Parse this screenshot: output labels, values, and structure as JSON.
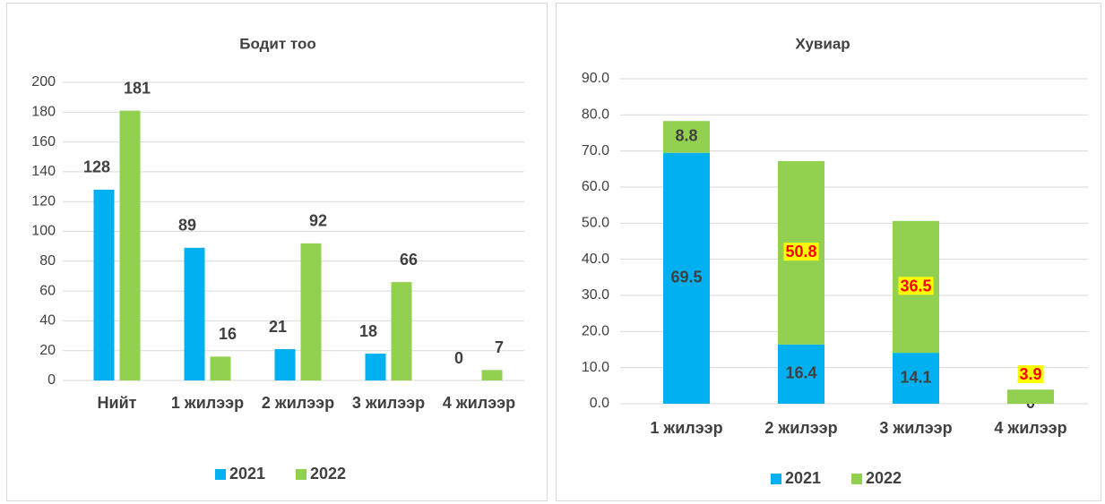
{
  "chart_data": [
    {
      "type": "bar",
      "title": "Бодит тоо",
      "categories": [
        "Нийт",
        "1 жилээр",
        "2 жилээр",
        "3 жилээр",
        "4 жилээр"
      ],
      "series": [
        {
          "name": "2021",
          "color": "#00b0f0",
          "values": [
            128,
            89,
            21,
            18,
            0
          ]
        },
        {
          "name": "2022",
          "color": "#92d050",
          "values": [
            181,
            16,
            92,
            66,
            7
          ]
        }
      ],
      "ylim": [
        0,
        200
      ],
      "yticks": [
        0,
        20,
        40,
        60,
        80,
        100,
        120,
        140,
        160,
        180,
        200
      ],
      "grid": true,
      "legend": "bottom"
    },
    {
      "type": "stacked_bar",
      "title": "Хувиар",
      "categories": [
        "1 жилээр",
        "2 жилээр",
        "3 жилээр",
        "4 жилээр"
      ],
      "series": [
        {
          "name": "2021",
          "color": "#00b0f0",
          "values": [
            69.5,
            16.4,
            14.1,
            0
          ]
        },
        {
          "name": "2022",
          "color": "#92d050",
          "values": [
            8.8,
            50.8,
            36.5,
            3.9
          ],
          "label_style": [
            "normal",
            "highlight",
            "highlight",
            "highlight"
          ]
        }
      ],
      "ylim": [
        0,
        90
      ],
      "yticks": [
        {
          "value": 0,
          "label": "0.0"
        },
        {
          "value": 10,
          "label": "10.0"
        },
        {
          "value": 20,
          "label": "20.0"
        },
        {
          "value": 30,
          "label": "30.0"
        },
        {
          "value": 40,
          "label": "40.0"
        },
        {
          "value": 50,
          "label": "50.0"
        },
        {
          "value": 60,
          "label": "60.0"
        },
        {
          "value": 70,
          "label": "70.0"
        },
        {
          "value": 80,
          "label": "80.0"
        },
        {
          "value": 90,
          "label": "90.0"
        }
      ],
      "grid": true,
      "legend": "bottom"
    }
  ]
}
